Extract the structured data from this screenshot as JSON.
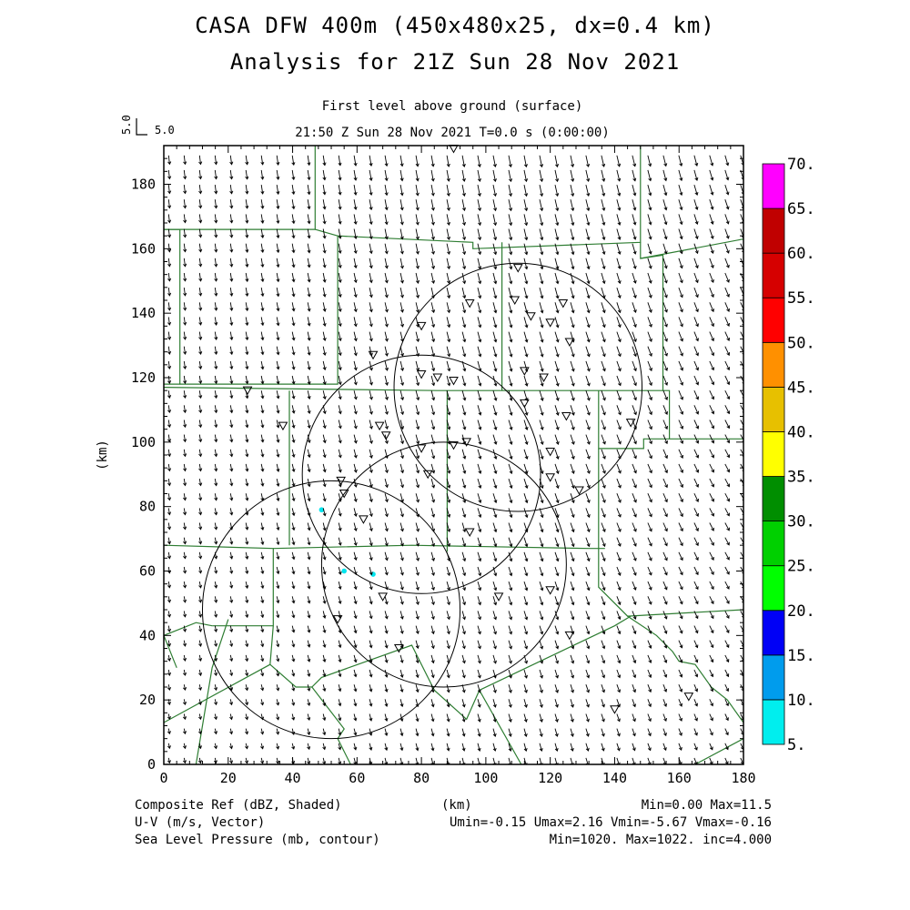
{
  "header": {
    "title_line1": "CASA DFW 400m (450x480x25, dx=0.4 km)",
    "title_line2": "Analysis for 21Z Sun 28 Nov 2021",
    "level": "First level above ground (surface)",
    "time": "21:50 Z Sun 28 Nov 2021    T=0.0 s (0:00:00)",
    "ref_vector_scale": "5.0",
    "ref_vector_label": "5.0"
  },
  "footer": {
    "ref_label": "Composite Ref (dBZ, Shaded)",
    "wind_label": "U-V (m/s, Vector)",
    "pressure_label": "Sea Level Pressure (mb, contour)",
    "x_unit": "(km)",
    "ref_stats": "Min=0.00 Max=11.5",
    "wind_stats": "Umin=-0.15 Umax=2.16 Vmin=-5.67 Vmax=-0.16",
    "pressure_stats": "Min=1020. Max=1022. inc=4.000"
  },
  "colors": {
    "boundary": "#2e7d32",
    "echo": "#00e5ee",
    "arrow": "#000000"
  },
  "chart_data": {
    "type": "vector field map",
    "x_axis": {
      "label": "",
      "unit": "(km)",
      "range": [
        0,
        180
      ],
      "ticks": [
        0,
        20,
        40,
        60,
        80,
        100,
        120,
        140,
        160,
        180
      ]
    },
    "y_axis": {
      "label": "(km)",
      "range": [
        0,
        192
      ],
      "ticks": [
        0,
        20,
        40,
        60,
        80,
        100,
        120,
        140,
        160,
        180
      ]
    },
    "wind_field": {
      "u_range": [
        -0.15,
        2.16
      ],
      "v_range": [
        -5.67,
        -0.16
      ]
    },
    "reflectivity_points_dbz": [
      {
        "x": 49,
        "y": 79,
        "dbz": 9
      },
      {
        "x": 56,
        "y": 60,
        "dbz": 8
      },
      {
        "x": 65,
        "y": 59,
        "dbz": 8
      }
    ],
    "radar_range_rings": [
      {
        "cx": 52,
        "cy": 48,
        "r": 40
      },
      {
        "cx": 80,
        "cy": 90,
        "r": 37
      },
      {
        "cx": 87,
        "cy": 62,
        "r": 38
      },
      {
        "cx": 110,
        "cy": 117,
        "r": 38.5
      }
    ],
    "station_markers": [
      [
        90,
        191
      ],
      [
        110,
        154
      ],
      [
        95,
        143
      ],
      [
        109,
        144
      ],
      [
        124,
        143
      ],
      [
        80,
        136
      ],
      [
        114,
        139
      ],
      [
        120,
        137
      ],
      [
        126,
        131
      ],
      [
        26,
        116
      ],
      [
        65,
        127
      ],
      [
        37,
        105
      ],
      [
        80,
        121
      ],
      [
        85,
        120
      ],
      [
        90,
        119
      ],
      [
        112,
        122
      ],
      [
        118,
        120
      ],
      [
        112,
        112
      ],
      [
        125,
        108
      ],
      [
        145,
        106
      ],
      [
        67,
        105
      ],
      [
        69,
        102
      ],
      [
        80,
        98
      ],
      [
        90,
        99
      ],
      [
        94,
        100
      ],
      [
        120,
        97
      ],
      [
        55,
        88
      ],
      [
        56,
        84
      ],
      [
        120,
        89
      ],
      [
        82,
        90
      ],
      [
        129,
        85
      ],
      [
        62,
        76
      ],
      [
        95,
        72
      ],
      [
        68,
        52
      ],
      [
        104,
        52
      ],
      [
        120,
        54
      ],
      [
        54,
        45
      ],
      [
        73,
        36
      ],
      [
        126,
        40
      ],
      [
        140,
        17
      ],
      [
        163,
        21
      ]
    ],
    "colorbar": {
      "label": "Composite Ref (dBZ)",
      "levels": [
        "5.",
        "10.",
        "15.",
        "20.",
        "25.",
        "30.",
        "35.",
        "40.",
        "45.",
        "50.",
        "55.",
        "60.",
        "65.",
        "70."
      ],
      "colors": [
        "#00eeee",
        "#009ced",
        "#0000f6",
        "#00ff00",
        "#00d000",
        "#008e00",
        "#ffff00",
        "#e7c000",
        "#ff9000",
        "#ff0000",
        "#d60000",
        "#c00000",
        "#ff00ff"
      ]
    },
    "stats": {
      "ref_min": 0.0,
      "ref_max": 11.5,
      "umin": -0.15,
      "umax": 2.16,
      "vmin": -5.67,
      "vmax": -0.16,
      "p_min": 1020,
      "p_max": 1022,
      "p_inc": 4.0
    }
  }
}
